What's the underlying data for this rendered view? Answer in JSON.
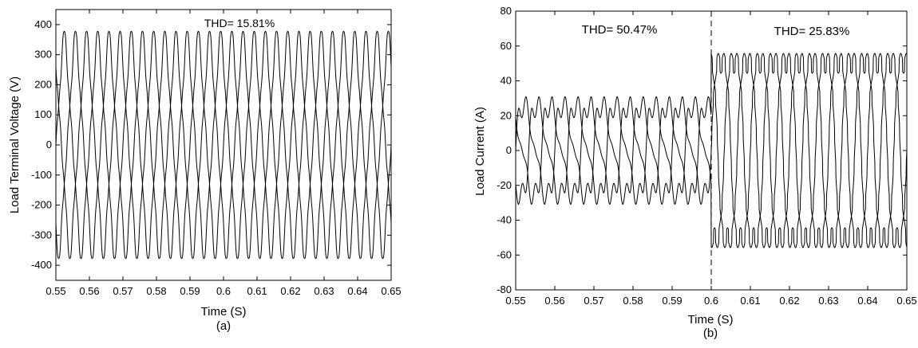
{
  "chart_data": [
    {
      "type": "line",
      "panel_label": "(a)",
      "xlabel": "Time (S)",
      "ylabel": "Load Terminal Voltage (V)",
      "xlim": [
        0.55,
        0.65
      ],
      "ylim": [
        -450,
        450
      ],
      "xticks": [
        "0.55",
        "0.56",
        "0.57",
        "0.58",
        "0.59",
        "0.6",
        "0.61",
        "0.62",
        "0.63",
        "0.64",
        "0.65"
      ],
      "yticks": [
        "400",
        "300",
        "200",
        "100",
        "0",
        "-100",
        "-200",
        "-300",
        "-400"
      ],
      "annotations": [
        "THD= 15.81%"
      ],
      "grid": false,
      "series": [
        {
          "phase_deg": 0,
          "amplitude": 350,
          "frequency_hz": 100,
          "waveform": "distorted-sinusoid"
        },
        {
          "phase_deg": -120,
          "amplitude": 350,
          "frequency_hz": 100,
          "waveform": "distorted-sinusoid"
        },
        {
          "phase_deg": 120,
          "amplitude": 350,
          "frequency_hz": 100,
          "waveform": "distorted-sinusoid"
        }
      ]
    },
    {
      "type": "line",
      "panel_label": "(b)",
      "xlabel": "Time (S)",
      "ylabel": "Load Current (A)",
      "xlim": [
        0.55,
        0.65
      ],
      "ylim": [
        -80,
        80
      ],
      "xticks": [
        "0.55",
        "0.56",
        "0.57",
        "0.58",
        "0.59",
        "0.6",
        "0.61",
        "0.62",
        "0.63",
        "0.64",
        "0.65"
      ],
      "yticks": [
        "80",
        "60",
        "40",
        "20",
        "0",
        "-20",
        "-40",
        "-60",
        "-80"
      ],
      "annotations": [
        "THD= 50.47%",
        "THD= 25.83%"
      ],
      "divider_x": 0.6,
      "grid": false,
      "segments": [
        {
          "x_range": [
            0.55,
            0.6
          ],
          "amplitude": 35,
          "frequency_hz": 100,
          "waveform": "distorted-sinusoid"
        },
        {
          "x_range": [
            0.6,
            0.65
          ],
          "amplitude": 62,
          "frequency_hz": 100,
          "waveform": "distorted-stepped"
        }
      ],
      "series": [
        {
          "phase_deg": 0
        },
        {
          "phase_deg": -120
        },
        {
          "phase_deg": 120
        }
      ]
    }
  ]
}
